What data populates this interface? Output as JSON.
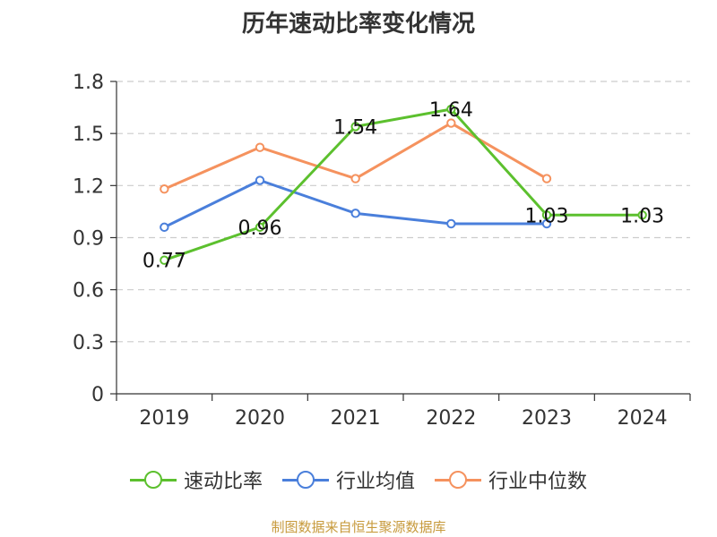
{
  "chart_data": {
    "type": "line",
    "title": "历年速动比率变化情况",
    "categories": [
      "2019",
      "2020",
      "2021",
      "2022",
      "2023",
      "2024"
    ],
    "ylim": [
      0,
      1.8
    ],
    "yticks": [
      "0",
      "0.3",
      "0.6",
      "0.9",
      "1.2",
      "1.5",
      "1.8"
    ],
    "grid": true,
    "legend_position": "bottom",
    "series": [
      {
        "name": "速动比率",
        "color": "#5cc02e",
        "values": [
          0.77,
          0.96,
          1.54,
          1.64,
          1.03,
          1.03
        ],
        "labels": [
          "0.77",
          "0.96",
          "1.54",
          "1.64",
          "1.03",
          "1.03"
        ]
      },
      {
        "name": "行业均值",
        "color": "#4a7fdb",
        "values": [
          0.96,
          1.23,
          1.04,
          0.98,
          0.98,
          null
        ]
      },
      {
        "name": "行业中位数",
        "color": "#f5925e",
        "values": [
          1.18,
          1.42,
          1.24,
          1.56,
          1.24,
          null
        ]
      }
    ],
    "source": "制图数据来自恒生聚源数据库"
  }
}
